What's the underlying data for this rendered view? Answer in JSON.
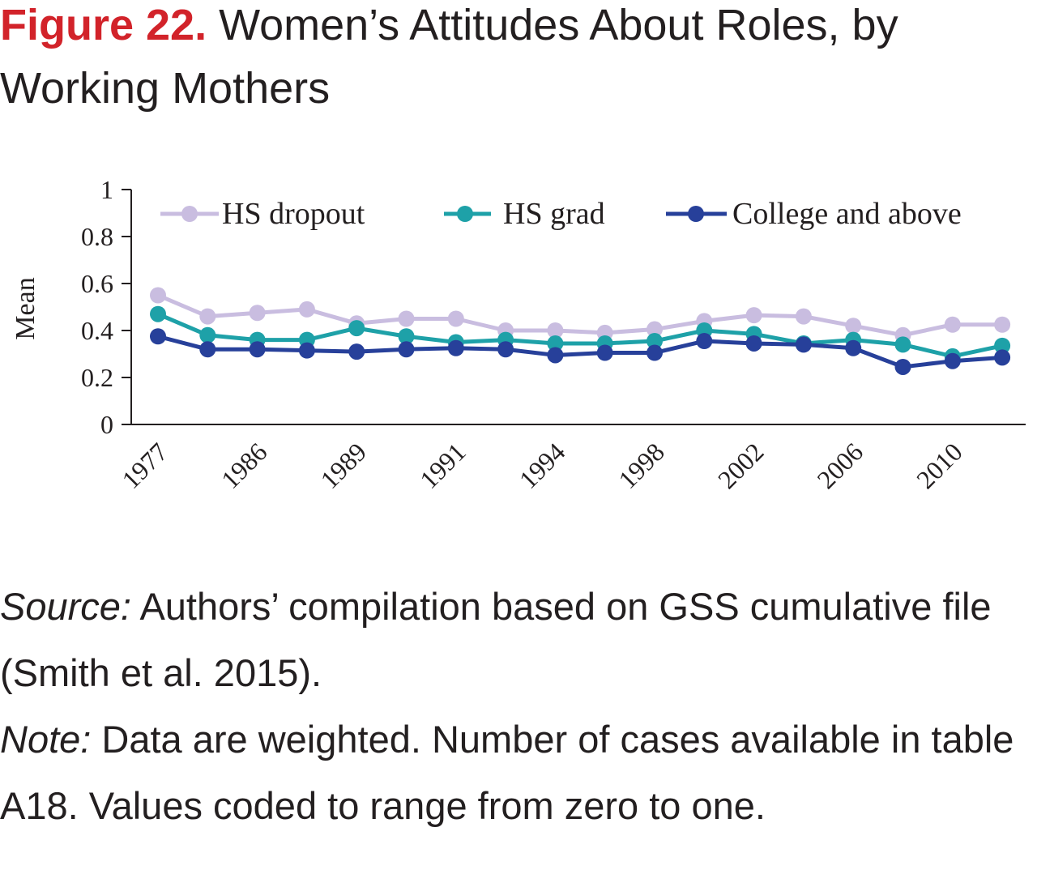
{
  "figure": {
    "label": "Figure 22.",
    "title": "Women’s Attitudes About Roles, by Working Mothers"
  },
  "chart_data": {
    "type": "line",
    "ylabel": "Mean",
    "xlabel": "",
    "ylim": [
      0,
      1
    ],
    "yticks": [
      "0",
      "0.2",
      "0.4",
      "0.6",
      "0.8",
      "1"
    ],
    "tick_labels": [
      "1977",
      "1986",
      "1989",
      "1991",
      "1994",
      "1998",
      "2002",
      "2006",
      "2010"
    ],
    "num_points": 18,
    "grid": false,
    "legend_position": "top",
    "series": [
      {
        "name": "HS dropout",
        "color": "#c9bde0",
        "values": [
          0.55,
          0.46,
          0.475,
          0.49,
          0.43,
          0.45,
          0.45,
          0.4,
          0.4,
          0.39,
          0.405,
          0.44,
          0.465,
          0.46,
          0.42,
          0.38,
          0.425,
          0.425
        ]
      },
      {
        "name": "HS grad",
        "color": "#1ea1a8",
        "values": [
          0.47,
          0.38,
          0.36,
          0.36,
          0.41,
          0.375,
          0.35,
          0.36,
          0.345,
          0.345,
          0.355,
          0.4,
          0.385,
          0.345,
          0.36,
          0.34,
          0.29,
          0.335
        ]
      },
      {
        "name": "College and above",
        "color": "#27409a",
        "values": [
          0.375,
          0.32,
          0.32,
          0.315,
          0.31,
          0.32,
          0.325,
          0.32,
          0.295,
          0.305,
          0.305,
          0.355,
          0.345,
          0.34,
          0.325,
          0.245,
          0.27,
          0.285
        ]
      }
    ]
  },
  "notes": {
    "source_label": "Source:",
    "source_text": " Authors’ compilation based on GSS cumulative file (Smith et al. 2015).",
    "note_label": "Note:",
    "note_text": " Data are weighted. Number of cases available in table A18. Values coded to range from zero to one."
  }
}
